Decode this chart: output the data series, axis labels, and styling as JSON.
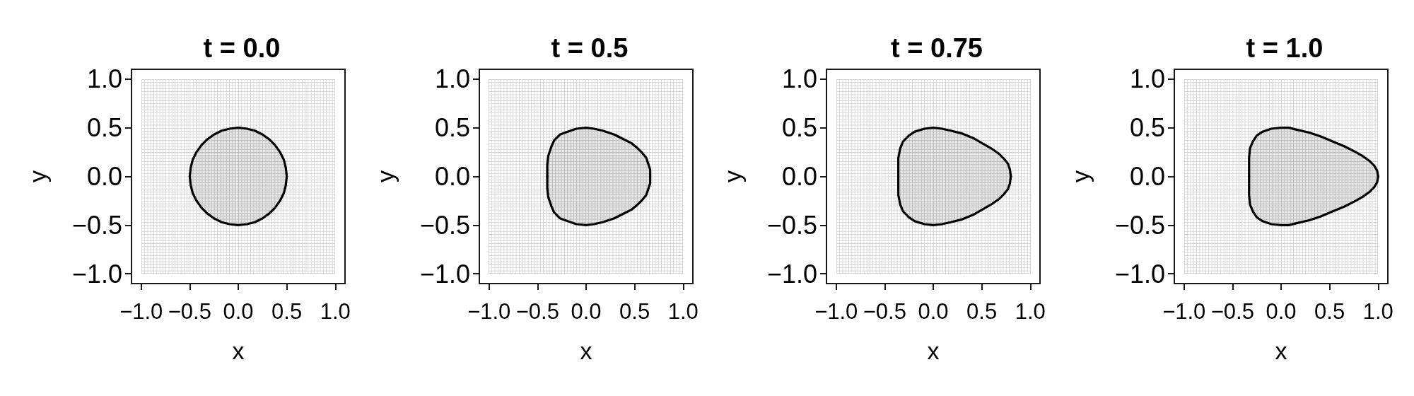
{
  "chart_data": [
    {
      "type": "area",
      "title": "t = 0.0",
      "xlabel": "x",
      "ylabel": "y",
      "xlim": [
        -1.1,
        1.1
      ],
      "ylim": [
        -1.1,
        1.1
      ],
      "xticks": [
        {
          "value": -1,
          "label": "−1.0"
        },
        {
          "value": -0.5,
          "label": "−0.5"
        },
        {
          "value": 0,
          "label": "0.0"
        },
        {
          "value": 0.5,
          "label": "0.5"
        },
        {
          "value": 1,
          "label": "1.0"
        }
      ],
      "yticks": [
        {
          "value": -1,
          "label": "−1.0"
        },
        {
          "value": -0.5,
          "label": "−0.5"
        },
        {
          "value": 0,
          "label": "0.0"
        },
        {
          "value": 0.5,
          "label": "0.5"
        },
        {
          "value": 1,
          "label": "1.0"
        }
      ],
      "series": [
        {
          "color": "#000000",
          "x": [
            -0.5,
            -0.49,
            -0.47,
            -0.43,
            -0.38,
            -0.32,
            -0.25,
            -0.17,
            -0.09,
            0,
            0.09,
            0.17,
            0.25,
            0.32,
            0.38,
            0.43,
            0.47,
            0.49,
            0.5
          ],
          "values": [
            0,
            0.09,
            0.17,
            0.25,
            0.32,
            0.38,
            0.43,
            0.47,
            0.49,
            0.5,
            0.49,
            0.47,
            0.43,
            0.38,
            0.32,
            0.25,
            0.17,
            0.09,
            0
          ]
        },
        {
          "color": "#000000",
          "x": [
            -0.5,
            -0.49,
            -0.47,
            -0.43,
            -0.38,
            -0.32,
            -0.25,
            -0.17,
            -0.09,
            0,
            0.09,
            0.17,
            0.25,
            0.32,
            0.38,
            0.43,
            0.47,
            0.49,
            0.5
          ],
          "values": [
            0,
            -0.09,
            -0.17,
            -0.25,
            -0.32,
            -0.38,
            -0.43,
            -0.47,
            -0.49,
            -0.5,
            -0.49,
            -0.47,
            -0.43,
            -0.38,
            -0.32,
            -0.25,
            -0.17,
            -0.09,
            0
          ]
        }
      ]
    },
    {
      "type": "area",
      "title": "t = 0.5",
      "xlabel": "x",
      "ylabel": "y",
      "xlim": [
        -1.1,
        1.1
      ],
      "ylim": [
        -1.1,
        1.1
      ],
      "xticks": [
        {
          "value": -1,
          "label": "−1.0"
        },
        {
          "value": -0.5,
          "label": "−0.5"
        },
        {
          "value": 0,
          "label": "0.0"
        },
        {
          "value": 0.5,
          "label": "0.5"
        },
        {
          "value": 1,
          "label": "1.0"
        }
      ],
      "yticks": [
        {
          "value": -1,
          "label": "−1.0"
        },
        {
          "value": -0.5,
          "label": "−0.5"
        },
        {
          "value": 0,
          "label": "0.0"
        },
        {
          "value": 0.5,
          "label": "0.5"
        },
        {
          "value": 1,
          "label": "1.0"
        }
      ],
      "series": [
        {
          "color": "#000000",
          "x": [
            -0.4,
            -0.4,
            -0.39,
            -0.36,
            -0.33,
            -0.27,
            -0.19,
            -0.1,
            0,
            0.08,
            0.17,
            0.29,
            0.41,
            0.47,
            0.53,
            0.58,
            0.62,
            0.64,
            0.66,
            0.66
          ],
          "values": [
            0,
            0.12,
            0.21,
            0.3,
            0.37,
            0.43,
            0.46,
            0.49,
            0.5,
            0.49,
            0.47,
            0.43,
            0.37,
            0.34,
            0.29,
            0.24,
            0.19,
            0.13,
            0.07,
            0
          ]
        },
        {
          "color": "#000000",
          "x": [
            -0.4,
            -0.4,
            -0.39,
            -0.36,
            -0.33,
            -0.27,
            -0.19,
            -0.1,
            0,
            0.08,
            0.17,
            0.29,
            0.41,
            0.47,
            0.53,
            0.58,
            0.62,
            0.64,
            0.66,
            0.66
          ],
          "values": [
            0,
            -0.12,
            -0.21,
            -0.3,
            -0.37,
            -0.43,
            -0.46,
            -0.49,
            -0.5,
            -0.49,
            -0.47,
            -0.43,
            -0.37,
            -0.34,
            -0.29,
            -0.24,
            -0.19,
            -0.13,
            -0.07,
            0
          ]
        }
      ]
    },
    {
      "type": "area",
      "title": "t = 0.75",
      "xlabel": "x",
      "ylabel": "y",
      "xlim": [
        -1.1,
        1.1
      ],
      "ylim": [
        -1.1,
        1.1
      ],
      "xticks": [
        {
          "value": -1,
          "label": "−1.0"
        },
        {
          "value": -0.5,
          "label": "−0.5"
        },
        {
          "value": 0,
          "label": "0.0"
        },
        {
          "value": 0.5,
          "label": "0.5"
        },
        {
          "value": 1,
          "label": "1.0"
        }
      ],
      "yticks": [
        {
          "value": -1,
          "label": "−1.0"
        },
        {
          "value": -0.5,
          "label": "−0.5"
        },
        {
          "value": 0,
          "label": "0.0"
        },
        {
          "value": 0.5,
          "label": "0.5"
        },
        {
          "value": 1,
          "label": "1.0"
        }
      ],
      "series": [
        {
          "color": "#000000",
          "x": [
            -0.36,
            -0.36,
            -0.36,
            -0.34,
            -0.31,
            -0.25,
            -0.19,
            -0.09,
            0,
            0.09,
            0.18,
            0.3,
            0.42,
            0.54,
            0.61,
            0.68,
            0.73,
            0.77,
            0.79,
            0.8
          ],
          "values": [
            0,
            0.09,
            0.19,
            0.29,
            0.36,
            0.42,
            0.46,
            0.49,
            0.5,
            0.49,
            0.47,
            0.44,
            0.39,
            0.32,
            0.28,
            0.23,
            0.18,
            0.13,
            0.07,
            0
          ]
        },
        {
          "color": "#000000",
          "x": [
            -0.36,
            -0.36,
            -0.36,
            -0.34,
            -0.31,
            -0.25,
            -0.19,
            -0.09,
            0,
            0.09,
            0.18,
            0.3,
            0.42,
            0.54,
            0.61,
            0.68,
            0.73,
            0.77,
            0.79,
            0.8
          ],
          "values": [
            0,
            -0.09,
            -0.19,
            -0.29,
            -0.36,
            -0.42,
            -0.46,
            -0.49,
            -0.5,
            -0.49,
            -0.47,
            -0.44,
            -0.39,
            -0.32,
            -0.28,
            -0.23,
            -0.18,
            -0.13,
            -0.07,
            0
          ]
        }
      ]
    },
    {
      "type": "area",
      "title": "t = 1.0",
      "xlabel": "x",
      "ylabel": "y",
      "xlim": [
        -1.1,
        1.1
      ],
      "ylim": [
        -1.1,
        1.1
      ],
      "xticks": [
        {
          "value": -1,
          "label": "−1.0"
        },
        {
          "value": -0.5,
          "label": "−0.5"
        },
        {
          "value": 0,
          "label": "0.0"
        },
        {
          "value": 0.5,
          "label": "0.5"
        },
        {
          "value": 1,
          "label": "1.0"
        }
      ],
      "yticks": [
        {
          "value": -1,
          "label": "−1.0"
        },
        {
          "value": -0.5,
          "label": "−0.5"
        },
        {
          "value": 0,
          "label": "0.0"
        },
        {
          "value": 0.5,
          "label": "0.5"
        },
        {
          "value": 1,
          "label": "1.0"
        }
      ],
      "series": [
        {
          "color": "#000000",
          "x": [
            -0.33,
            -0.33,
            -0.33,
            -0.32,
            -0.29,
            -0.25,
            -0.19,
            -0.1,
            0,
            0.08,
            0.16,
            0.29,
            0.41,
            0.53,
            0.65,
            0.77,
            0.84,
            0.91,
            0.96,
            0.99,
            1
          ],
          "values": [
            0,
            0.09,
            0.19,
            0.29,
            0.36,
            0.42,
            0.46,
            0.49,
            0.5,
            0.5,
            0.48,
            0.45,
            0.41,
            0.36,
            0.31,
            0.25,
            0.21,
            0.16,
            0.11,
            0.06,
            0
          ]
        },
        {
          "color": "#000000",
          "x": [
            -0.33,
            -0.33,
            -0.33,
            -0.32,
            -0.29,
            -0.25,
            -0.19,
            -0.1,
            0,
            0.08,
            0.16,
            0.29,
            0.41,
            0.53,
            0.65,
            0.77,
            0.84,
            0.91,
            0.96,
            0.99,
            1
          ],
          "values": [
            0,
            -0.09,
            -0.19,
            -0.29,
            -0.36,
            -0.42,
            -0.46,
            -0.49,
            -0.5,
            -0.5,
            -0.48,
            -0.45,
            -0.41,
            -0.36,
            -0.31,
            -0.25,
            -0.21,
            -0.16,
            -0.11,
            -0.06,
            0
          ]
        }
      ]
    }
  ]
}
